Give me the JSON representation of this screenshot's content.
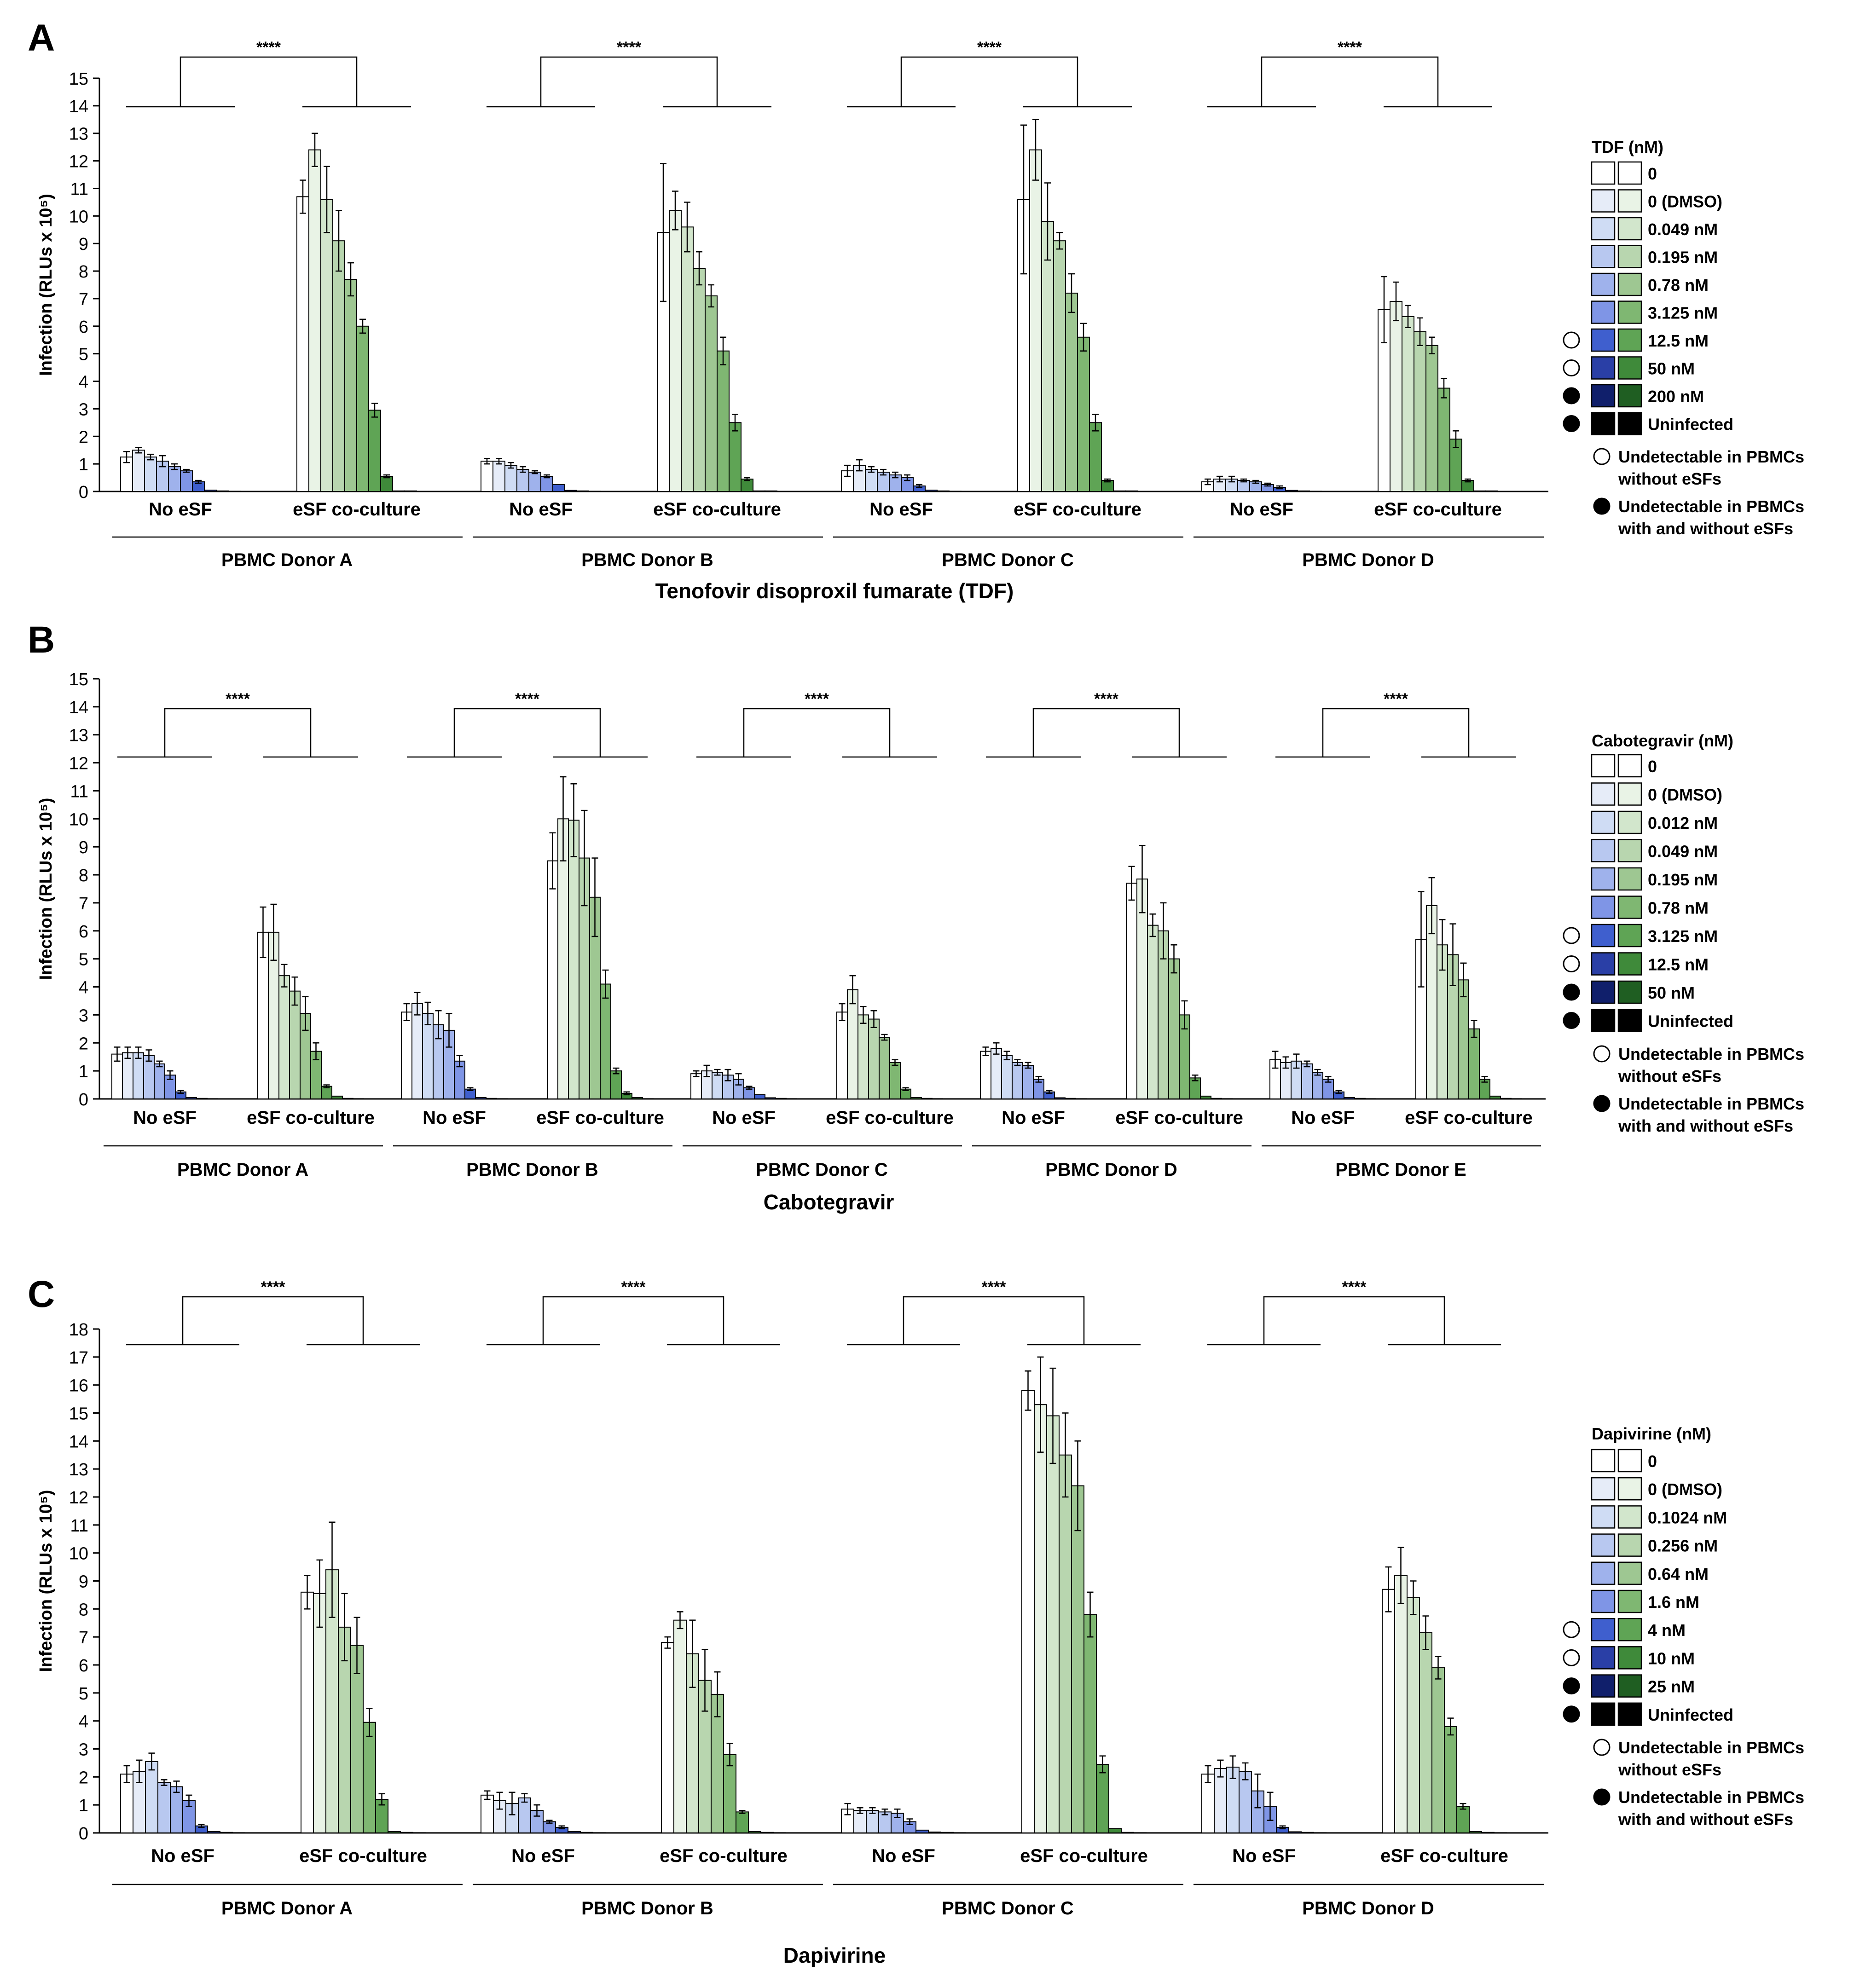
{
  "star_label": "****",
  "legend_notes": {
    "open": "Undetectable in PBMCs without eSFs",
    "filled": "Undetectable in PBMCs with and without eSFs"
  },
  "colors": {
    "blue": [
      "#ffffff",
      "#e6ecf8",
      "#cfdcf4",
      "#b8c8f0",
      "#9fb2ec",
      "#7f95e6",
      "#3f5fce",
      "#2a3fa6",
      "#101f6b",
      "#000000"
    ],
    "green": [
      "#ffffff",
      "#e9f3e6",
      "#d2e6cc",
      "#b8d6af",
      "#9ec792",
      "#7fb772",
      "#5fa455",
      "#3f8a3a",
      "#1f5e22",
      "#000000"
    ]
  },
  "chart_data": [
    {
      "panel_label": "A",
      "type": "bar",
      "title": "Tenofovir disoproxil fumarate (TDF)",
      "ylabel": "Infection (RLUs x 10⁵)",
      "ylim": [
        0,
        15
      ],
      "yticks": [
        0,
        1,
        2,
        3,
        4,
        5,
        6,
        7,
        8,
        9,
        10,
        11,
        12,
        13,
        14,
        15
      ],
      "conditions": [
        "No eSF",
        "eSF co-culture"
      ],
      "legend_title": "TDF (nM)",
      "legend_items": [
        "0",
        "0 (DMSO)",
        "0.049 nM",
        "0.195 nM",
        "0.78 nM",
        "3.125 nM",
        "12.5 nM",
        "50 nM",
        "200 nM",
        "Uninfected"
      ],
      "legend_marks": [
        "",
        "",
        "",
        "",
        "",
        "",
        "open",
        "open",
        "filled",
        "filled"
      ],
      "donors": [
        {
          "name": "PBMC Donor A",
          "significance": "****",
          "no_esf": [
            1.25,
            1.5,
            1.25,
            1.1,
            0.9,
            0.75,
            0.35,
            0.05,
            0.02,
            0.01
          ],
          "no_esf_err": [
            0.2,
            0.1,
            0.1,
            0.2,
            0.1,
            0.05,
            0.05,
            0.02,
            0.01,
            0.01
          ],
          "esf": [
            10.7,
            12.4,
            10.6,
            9.1,
            7.7,
            6.0,
            2.95,
            0.55,
            0.02,
            0.02
          ],
          "esf_err": [
            0.6,
            0.6,
            1.2,
            1.1,
            0.6,
            0.25,
            0.25,
            0.05,
            0.01,
            0.01
          ]
        },
        {
          "name": "PBMC Donor B",
          "significance": "****",
          "no_esf": [
            1.1,
            1.1,
            0.95,
            0.8,
            0.7,
            0.55,
            0.25,
            0.04,
            0.02,
            0.01
          ],
          "no_esf_err": [
            0.1,
            0.1,
            0.1,
            0.1,
            0.05,
            0.05,
            0.03,
            0.01,
            0.01,
            0.01
          ],
          "esf": [
            9.4,
            10.2,
            9.6,
            8.1,
            7.1,
            5.1,
            2.5,
            0.45,
            0.02,
            0.02
          ],
          "esf_err": [
            2.5,
            0.7,
            0.9,
            0.6,
            0.4,
            0.5,
            0.3,
            0.05,
            0.01,
            0.01
          ]
        },
        {
          "name": "PBMC Donor C",
          "significance": "****",
          "no_esf": [
            0.75,
            0.95,
            0.8,
            0.7,
            0.6,
            0.5,
            0.2,
            0.05,
            0.02,
            0.01
          ],
          "no_esf_err": [
            0.2,
            0.2,
            0.1,
            0.1,
            0.1,
            0.1,
            0.05,
            0.02,
            0.01,
            0.01
          ],
          "esf": [
            10.6,
            12.4,
            9.8,
            9.1,
            7.2,
            5.6,
            2.5,
            0.4,
            0.02,
            0.02
          ],
          "esf_err": [
            2.7,
            1.1,
            1.4,
            0.3,
            0.7,
            0.5,
            0.3,
            0.05,
            0.01,
            0.01
          ]
        },
        {
          "name": "PBMC Donor D",
          "significance": "****",
          "no_esf": [
            0.35,
            0.45,
            0.45,
            0.4,
            0.35,
            0.25,
            0.15,
            0.04,
            0.02,
            0.01
          ],
          "no_esf_err": [
            0.1,
            0.1,
            0.1,
            0.05,
            0.05,
            0.05,
            0.05,
            0.02,
            0.01,
            0.01
          ],
          "esf": [
            6.6,
            6.9,
            6.35,
            5.8,
            5.3,
            3.75,
            1.9,
            0.4,
            0.02,
            0.02
          ],
          "esf_err": [
            1.2,
            0.7,
            0.4,
            0.5,
            0.3,
            0.35,
            0.3,
            0.05,
            0.01,
            0.01
          ]
        }
      ]
    },
    {
      "panel_label": "B",
      "type": "bar",
      "title": "Cabotegravir",
      "ylabel": "Infection (RLUs x 10⁵)",
      "ylim": [
        0,
        15
      ],
      "yticks": [
        0,
        1,
        2,
        3,
        4,
        5,
        6,
        7,
        8,
        9,
        10,
        11,
        12,
        13,
        14,
        15
      ],
      "conditions": [
        "No eSF",
        "eSF co-culture"
      ],
      "legend_title": "Cabotegravir (nM)",
      "legend_items": [
        "0",
        "0 (DMSO)",
        "0.012 nM",
        "0.049 nM",
        "0.195 nM",
        "0.78 nM",
        "3.125 nM",
        "12.5 nM",
        "50 nM",
        "Uninfected"
      ],
      "legend_marks": [
        "",
        "",
        "",
        "",
        "",
        "",
        "open",
        "open",
        "filled",
        "filled"
      ],
      "donors": [
        {
          "name": "PBMC Donor A",
          "significance": "****",
          "no_esf": [
            1.6,
            1.65,
            1.65,
            1.55,
            1.25,
            0.85,
            0.25,
            0.05,
            0.02,
            0.01
          ],
          "no_esf_err": [
            0.25,
            0.2,
            0.2,
            0.2,
            0.1,
            0.15,
            0.05,
            0.02,
            0.01,
            0.01
          ],
          "esf": [
            5.95,
            5.95,
            4.4,
            3.85,
            3.05,
            1.7,
            0.45,
            0.1,
            0.02,
            0.01
          ],
          "esf_err": [
            0.9,
            1.0,
            0.4,
            0.5,
            0.6,
            0.3,
            0.05,
            0.02,
            0.01,
            0.01
          ]
        },
        {
          "name": "PBMC Donor B",
          "significance": "****",
          "no_esf": [
            3.1,
            3.4,
            3.05,
            2.65,
            2.45,
            1.35,
            0.35,
            0.05,
            0.02,
            0.01
          ],
          "no_esf_err": [
            0.3,
            0.4,
            0.4,
            0.5,
            0.6,
            0.2,
            0.05,
            0.02,
            0.01,
            0.01
          ],
          "esf": [
            8.5,
            10.0,
            9.95,
            8.6,
            7.2,
            4.1,
            1.0,
            0.2,
            0.05,
            0.01
          ],
          "esf_err": [
            1.0,
            1.5,
            1.3,
            1.7,
            1.4,
            0.5,
            0.1,
            0.05,
            0.02,
            0.01
          ]
        },
        {
          "name": "PBMC Donor C",
          "significance": "****",
          "no_esf": [
            0.9,
            1.0,
            0.95,
            0.85,
            0.7,
            0.4,
            0.15,
            0.04,
            0.02,
            0.01
          ],
          "no_esf_err": [
            0.1,
            0.2,
            0.1,
            0.2,
            0.2,
            0.05,
            0.03,
            0.02,
            0.01,
            0.01
          ],
          "esf": [
            3.1,
            3.9,
            3.0,
            2.85,
            2.2,
            1.3,
            0.35,
            0.05,
            0.02,
            0.01
          ],
          "esf_err": [
            0.3,
            0.5,
            0.3,
            0.3,
            0.1,
            0.1,
            0.05,
            0.02,
            0.01,
            0.01
          ]
        },
        {
          "name": "PBMC Donor D",
          "significance": "****",
          "no_esf": [
            1.7,
            1.8,
            1.55,
            1.3,
            1.2,
            0.7,
            0.25,
            0.04,
            0.02,
            0.01
          ],
          "no_esf_err": [
            0.15,
            0.2,
            0.15,
            0.1,
            0.1,
            0.1,
            0.05,
            0.02,
            0.01,
            0.01
          ],
          "esf": [
            7.7,
            7.85,
            6.2,
            6.0,
            5.0,
            3.0,
            0.75,
            0.1,
            0.02,
            0.01
          ],
          "esf_err": [
            0.6,
            1.2,
            0.4,
            1.0,
            0.5,
            0.5,
            0.1,
            0.02,
            0.01,
            0.01
          ]
        },
        {
          "name": "PBMC Donor E",
          "significance": "****",
          "no_esf": [
            1.4,
            1.3,
            1.35,
            1.25,
            0.95,
            0.7,
            0.25,
            0.05,
            0.02,
            0.01
          ],
          "no_esf_err": [
            0.3,
            0.2,
            0.25,
            0.1,
            0.1,
            0.1,
            0.05,
            0.02,
            0.01,
            0.01
          ],
          "esf": [
            5.7,
            6.9,
            5.5,
            5.15,
            4.25,
            2.5,
            0.7,
            0.1,
            0.02,
            0.01
          ],
          "esf_err": [
            1.7,
            1.0,
            0.9,
            1.1,
            0.6,
            0.3,
            0.1,
            0.02,
            0.01,
            0.01
          ]
        }
      ]
    },
    {
      "panel_label": "C",
      "type": "bar",
      "title": "Dapivirine",
      "ylabel": "Infection (RLUs x 10⁵)",
      "ylim": [
        0,
        18
      ],
      "yticks": [
        0,
        1,
        2,
        3,
        4,
        5,
        6,
        7,
        8,
        9,
        10,
        11,
        12,
        13,
        14,
        15,
        16,
        17,
        18
      ],
      "conditions": [
        "No eSF",
        "eSF co-culture"
      ],
      "legend_title": "Dapivirine (nM)",
      "legend_items": [
        "0",
        "0 (DMSO)",
        "0.1024 nM",
        "0.256 nM",
        "0.64 nM",
        "1.6 nM",
        "4 nM",
        "10 nM",
        "25 nM",
        "Uninfected"
      ],
      "legend_marks": [
        "",
        "",
        "",
        "",
        "",
        "",
        "open",
        "open",
        "filled",
        "filled"
      ],
      "donors": [
        {
          "name": "PBMC Donor A",
          "significance": "****",
          "no_esf": [
            2.1,
            2.2,
            2.55,
            1.8,
            1.65,
            1.15,
            0.25,
            0.05,
            0.02,
            0.01
          ],
          "no_esf_err": [
            0.3,
            0.4,
            0.3,
            0.1,
            0.2,
            0.2,
            0.05,
            0.02,
            0.01,
            0.01
          ],
          "esf": [
            8.6,
            8.55,
            9.4,
            7.35,
            6.7,
            3.95,
            1.2,
            0.05,
            0.02,
            0.01
          ],
          "esf_err": [
            0.6,
            1.2,
            1.7,
            1.2,
            1.0,
            0.5,
            0.2,
            0.02,
            0.01,
            0.01
          ]
        },
        {
          "name": "PBMC Donor B",
          "significance": "****",
          "no_esf": [
            1.35,
            1.15,
            1.05,
            1.25,
            0.8,
            0.4,
            0.2,
            0.05,
            0.02,
            0.01
          ],
          "no_esf_err": [
            0.15,
            0.3,
            0.4,
            0.15,
            0.2,
            0.05,
            0.05,
            0.02,
            0.01,
            0.01
          ],
          "esf": [
            6.8,
            7.6,
            6.4,
            5.45,
            4.95,
            2.8,
            0.75,
            0.05,
            0.02,
            0.01
          ],
          "esf_err": [
            0.2,
            0.3,
            1.2,
            1.1,
            0.8,
            0.4,
            0.05,
            0.02,
            0.01,
            0.01
          ]
        },
        {
          "name": "PBMC Donor C",
          "significance": "****",
          "no_esf": [
            0.85,
            0.8,
            0.8,
            0.75,
            0.7,
            0.4,
            0.1,
            0.03,
            0.02,
            0.01
          ],
          "no_esf_err": [
            0.2,
            0.1,
            0.1,
            0.1,
            0.15,
            0.1,
            0.03,
            0.01,
            0.01,
            0.01
          ],
          "esf": [
            15.8,
            15.3,
            14.9,
            13.5,
            12.4,
            7.8,
            2.45,
            0.15,
            0.02,
            0.01
          ],
          "esf_err": [
            0.7,
            1.7,
            1.7,
            1.5,
            1.6,
            0.8,
            0.3,
            0.03,
            0.01,
            0.01
          ]
        },
        {
          "name": "PBMC Donor D",
          "significance": "****",
          "no_esf": [
            2.1,
            2.3,
            2.35,
            2.2,
            1.5,
            0.95,
            0.2,
            0.04,
            0.02,
            0.01
          ],
          "no_esf_err": [
            0.3,
            0.3,
            0.4,
            0.3,
            0.6,
            0.5,
            0.05,
            0.02,
            0.01,
            0.01
          ],
          "esf": [
            8.7,
            9.2,
            8.4,
            7.15,
            5.9,
            3.8,
            0.95,
            0.05,
            0.02,
            0.01
          ],
          "esf_err": [
            0.8,
            1.0,
            0.6,
            0.6,
            0.4,
            0.3,
            0.1,
            0.02,
            0.01,
            0.01
          ]
        }
      ]
    }
  ]
}
